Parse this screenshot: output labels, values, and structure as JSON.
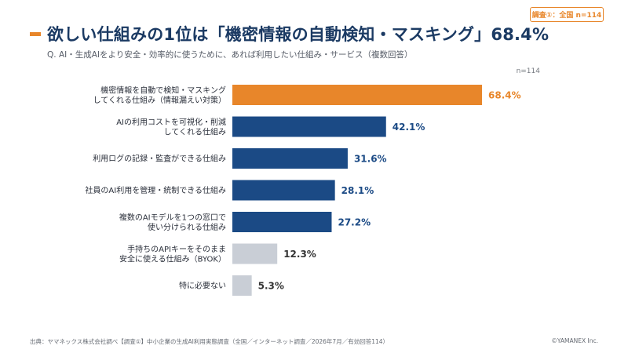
{
  "badge": "調査①：全国 n=114",
  "title": "欲しい仕組みの1位は「機密情報の自動検知・マスキング」68.4%",
  "subtitle": "Q. AI・生成AIをより安全・効率的に使うために、あれば利用したい仕組み・サービス（複数回答）",
  "n_label": "n=114",
  "chart_data": {
    "type": "bar",
    "orientation": "horizontal",
    "categories": [
      [
        "機密情報を自動で検知・マスキング",
        "してくれる仕組み（情報漏えい対策）"
      ],
      [
        "AIの利用コストを可視化・削減",
        "してくれる仕組み"
      ],
      [
        "利用ログの記録・監査ができる仕組み"
      ],
      [
        "社員のAI利用を管理・統制できる仕組み"
      ],
      [
        "複数のAIモデルを1つの窓口で",
        "使い分けられる仕組み"
      ],
      [
        "手持ちのAPIキーをそのまま",
        "安全に使える仕組み（BYOK）"
      ],
      [
        "特に必要ない"
      ]
    ],
    "values": [
      68.4,
      42.1,
      31.6,
      28.1,
      27.2,
      12.3,
      5.3
    ],
    "value_labels": [
      "68.4%",
      "42.1%",
      "31.6%",
      "28.1%",
      "27.2%",
      "12.3%",
      "5.3%"
    ],
    "bar_colors": [
      "#e8862a",
      "#1b4a85",
      "#1b4a85",
      "#1b4a85",
      "#1b4a85",
      "#c9ced6",
      "#c9ced6"
    ],
    "label_colors": [
      "#e8862a",
      "#1b4a85",
      "#1b4a85",
      "#1b4a85",
      "#1b4a85",
      "#333333",
      "#333333"
    ],
    "xlim": [
      0,
      100
    ],
    "grid": false
  },
  "footer": {
    "source": "出典：ヤマネックス株式会社調べ【調査①】中小企業の生成AI利用実態調査（全国／インターネット調査／2026年7月／有効回答114）",
    "copyright": "©YAMANEX Inc."
  }
}
